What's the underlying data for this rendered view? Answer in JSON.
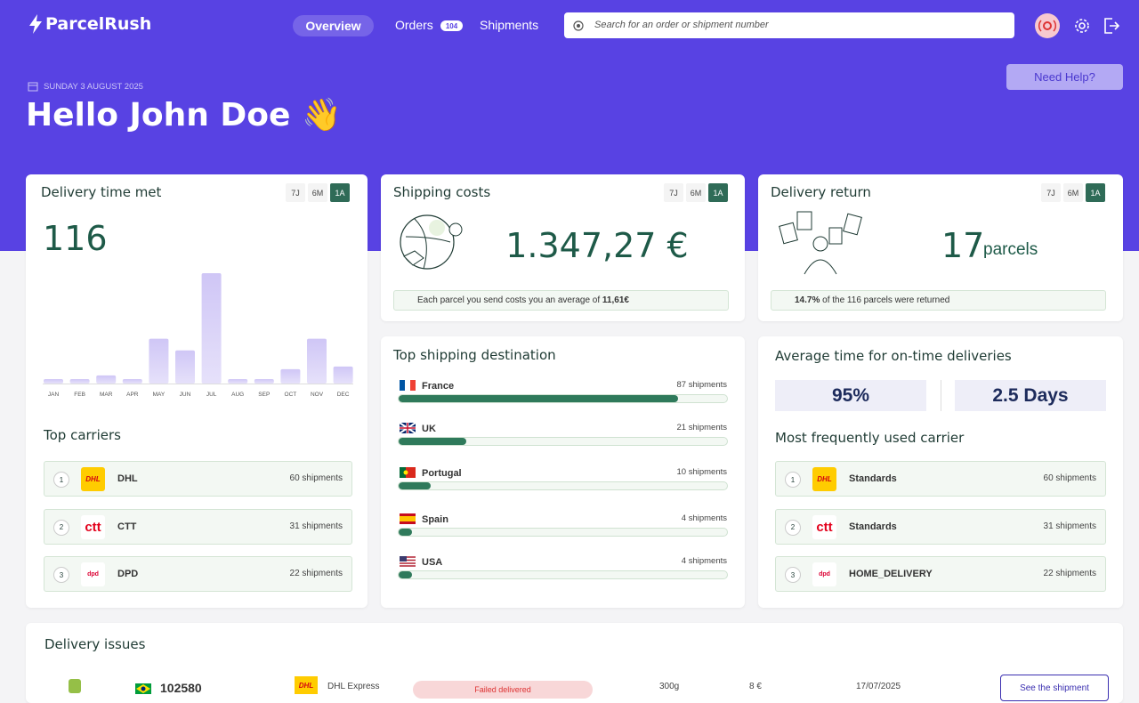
{
  "nav": {
    "brand": "ParcelRush",
    "tabs": [
      "Overview",
      "Orders",
      "Shipments"
    ],
    "orders_badge": "104",
    "search_placeholder": "Search for an order or shipment number"
  },
  "header": {
    "date": "SUNDAY 3 AUGUST 2025",
    "greeting": "Hello John Doe 👋",
    "help": "Need Help?"
  },
  "periods": [
    "7J",
    "6M",
    "1A"
  ],
  "delivery_time": {
    "title": "Delivery time met",
    "value": "116",
    "chart": {
      "type": "bar",
      "categories": [
        "JAN",
        "FEB",
        "MAR",
        "APR",
        "MAY",
        "JUN",
        "JUL",
        "AUG",
        "SEP",
        "OCT",
        "NOV",
        "DEC"
      ],
      "values": [
        5,
        5,
        9,
        5,
        50,
        37,
        123,
        5,
        5,
        16,
        50,
        19
      ]
    }
  },
  "top_carriers": {
    "title": "Top carriers",
    "rows": [
      {
        "rank": "1",
        "logo": "DHL",
        "name": "DHL",
        "count": "60 shipments"
      },
      {
        "rank": "2",
        "logo": "ctt",
        "name": "CTT",
        "count": "31 shipments"
      },
      {
        "rank": "3",
        "logo": "dpd",
        "name": "DPD",
        "count": "22 shipments"
      }
    ]
  },
  "shipping_costs": {
    "title": "Shipping costs",
    "value": "1.347,27 €",
    "note": "Each parcel you send costs you an average of ",
    "note_value": "11,61€"
  },
  "delivery_return": {
    "title": "Delivery return",
    "value": "17",
    "unit": "parcels",
    "note_value": "14.7%",
    "note": " of the 116 parcels were returned"
  },
  "destinations": {
    "title": "Top shipping destination",
    "rows": [
      {
        "name": "France",
        "value": 87,
        "label": "87 shipments"
      },
      {
        "name": "UK",
        "value": 21,
        "label": "21 shipments"
      },
      {
        "name": "Portugal",
        "value": 10,
        "label": "10 shipments"
      },
      {
        "name": "Spain",
        "value": 4,
        "label": "4 shipments"
      },
      {
        "name": "USA",
        "value": 4,
        "label": "4 shipments"
      }
    ]
  },
  "average_time": {
    "title": "Average time for on-time deliveries",
    "rate": "95%",
    "days": "2.5 Days"
  },
  "frequent_carrier": {
    "title": "Most frequently used carrier",
    "rows": [
      {
        "rank": "1",
        "logo": "DHL",
        "name": "Standards",
        "count": "60 shipments"
      },
      {
        "rank": "2",
        "logo": "ctt",
        "name": "Standards",
        "count": "31 shipments"
      },
      {
        "rank": "3",
        "logo": "dpd",
        "name": "HOME_DELIVERY",
        "count": "22 shipments"
      }
    ]
  },
  "delivery_issues": {
    "title": "Delivery issues",
    "rows": [
      {
        "order": "102580",
        "logo": "DHL",
        "carrier": "DHL Express",
        "status": "Failed delivered",
        "weight": "300g",
        "price": "8 €",
        "date": "17/07/2025",
        "action": "See the shipment"
      }
    ]
  }
}
